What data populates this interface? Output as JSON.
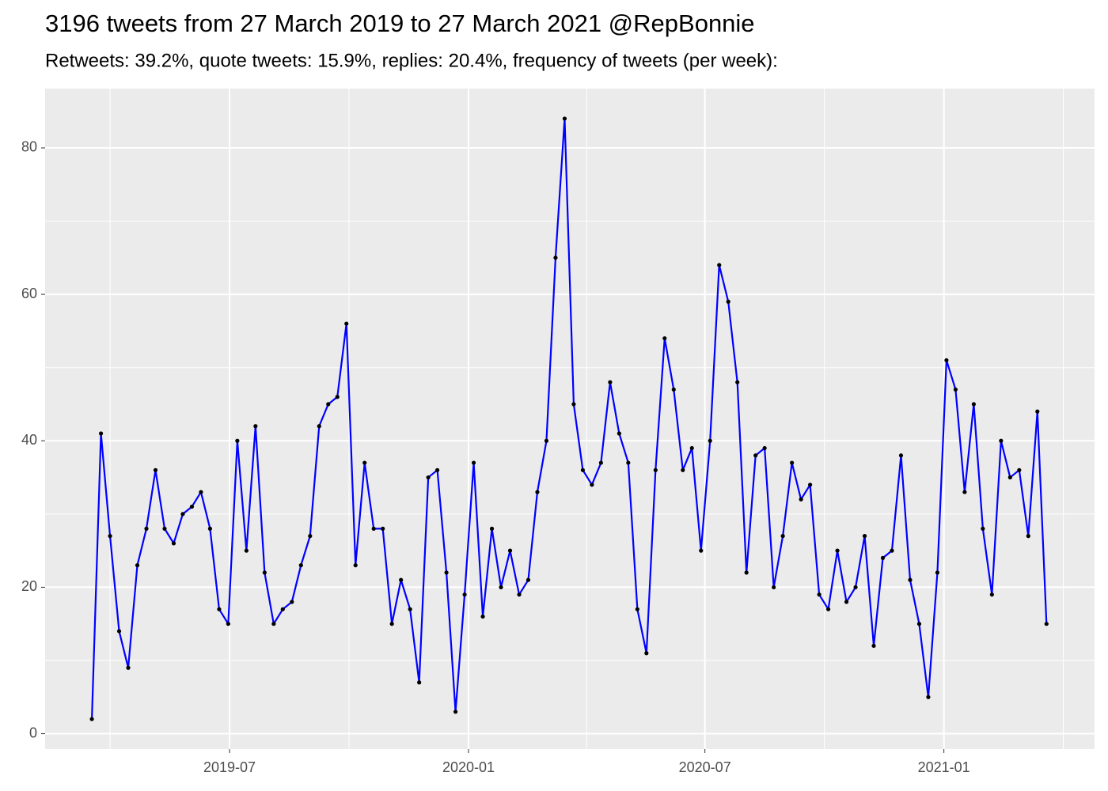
{
  "chart_data": {
    "type": "line",
    "title": "3196 tweets from 27 March 2019 to 27 March 2021 @RepBonnie",
    "subtitle": "Retweets: 39.2%, quote tweets: 15.9%, replies: 20.4%, frequency of tweets (per week):",
    "x": [
      "2019-03-17",
      "2019-03-24",
      "2019-03-31",
      "2019-04-07",
      "2019-04-14",
      "2019-04-21",
      "2019-04-28",
      "2019-05-05",
      "2019-05-12",
      "2019-05-19",
      "2019-05-26",
      "2019-06-02",
      "2019-06-09",
      "2019-06-16",
      "2019-06-23",
      "2019-06-30",
      "2019-07-07",
      "2019-07-14",
      "2019-07-21",
      "2019-07-28",
      "2019-08-04",
      "2019-08-11",
      "2019-08-18",
      "2019-08-25",
      "2019-09-01",
      "2019-09-08",
      "2019-09-15",
      "2019-09-22",
      "2019-09-29",
      "2019-10-06",
      "2019-10-13",
      "2019-10-20",
      "2019-10-27",
      "2019-11-03",
      "2019-11-10",
      "2019-11-17",
      "2019-11-24",
      "2019-12-01",
      "2019-12-08",
      "2019-12-15",
      "2019-12-22",
      "2019-12-29",
      "2020-01-05",
      "2020-01-12",
      "2020-01-19",
      "2020-01-26",
      "2020-02-02",
      "2020-02-09",
      "2020-02-16",
      "2020-02-23",
      "2020-03-01",
      "2020-03-08",
      "2020-03-15",
      "2020-03-22",
      "2020-03-29",
      "2020-04-05",
      "2020-04-12",
      "2020-04-19",
      "2020-04-26",
      "2020-05-03",
      "2020-05-10",
      "2020-05-17",
      "2020-05-24",
      "2020-05-31",
      "2020-06-07",
      "2020-06-14",
      "2020-06-21",
      "2020-06-28",
      "2020-07-05",
      "2020-07-12",
      "2020-07-19",
      "2020-07-26",
      "2020-08-02",
      "2020-08-09",
      "2020-08-16",
      "2020-08-23",
      "2020-08-30",
      "2020-09-06",
      "2020-09-13",
      "2020-09-20",
      "2020-09-27",
      "2020-10-04",
      "2020-10-11",
      "2020-10-18",
      "2020-10-25",
      "2020-11-01",
      "2020-11-08",
      "2020-11-15",
      "2020-11-22",
      "2020-11-29",
      "2020-12-06",
      "2020-12-13",
      "2020-12-20",
      "2020-12-27",
      "2021-01-03",
      "2021-01-10",
      "2021-01-17",
      "2021-01-24",
      "2021-01-31",
      "2021-02-07",
      "2021-02-14",
      "2021-02-21",
      "2021-02-28",
      "2021-03-07",
      "2021-03-14",
      "2021-03-21"
    ],
    "values": [
      2,
      41,
      27,
      14,
      9,
      23,
      28,
      36,
      28,
      26,
      30,
      31,
      33,
      28,
      17,
      15,
      40,
      25,
      42,
      22,
      15,
      17,
      18,
      23,
      27,
      42,
      45,
      46,
      56,
      23,
      37,
      28,
      28,
      15,
      21,
      17,
      7,
      35,
      36,
      22,
      3,
      19,
      37,
      16,
      28,
      20,
      25,
      19,
      21,
      33,
      40,
      65,
      84,
      45,
      36,
      34,
      37,
      48,
      41,
      37,
      17,
      11,
      36,
      54,
      47,
      36,
      39,
      25,
      40,
      64,
      59,
      48,
      22,
      38,
      39,
      20,
      27,
      37,
      32,
      34,
      19,
      17,
      25,
      18,
      20,
      27,
      12,
      24,
      25,
      38,
      21,
      15,
      5,
      22,
      51,
      47,
      33,
      45,
      28,
      19,
      40,
      35,
      36,
      27,
      44,
      15
    ],
    "color": "#0000ff",
    "point_color": "#000000",
    "xlim": [
      "2019-02-09",
      "2021-04-27"
    ],
    "xticks": [
      "2019-07",
      "2020-01",
      "2020-07",
      "2021-01"
    ],
    "ylim": [
      -2.1,
      88.1
    ],
    "yticks": [
      0,
      20,
      40,
      60,
      80
    ],
    "grid": true
  }
}
